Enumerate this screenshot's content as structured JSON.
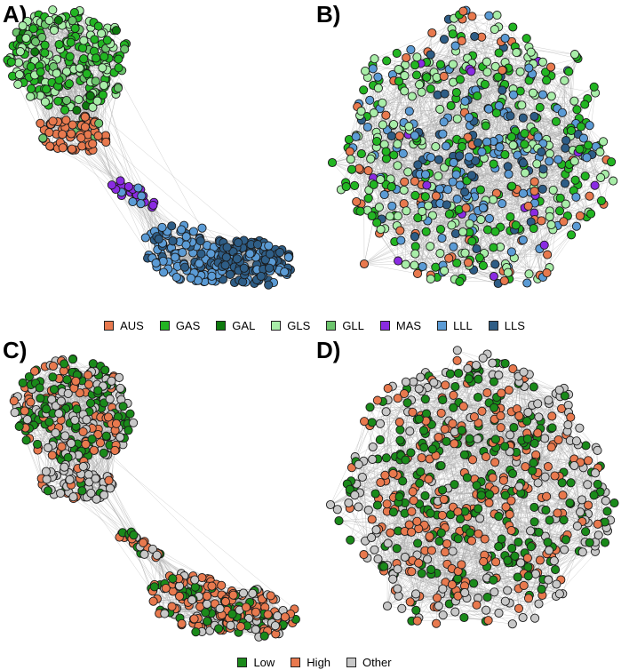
{
  "panels": {
    "a": {
      "label": "A)"
    },
    "b": {
      "label": "B)"
    },
    "c": {
      "label": "C)"
    },
    "d": {
      "label": "D)"
    }
  },
  "legend_top": {
    "items": [
      {
        "label": "AUS",
        "color": "#e8794e"
      },
      {
        "label": "GAS",
        "color": "#22b522"
      },
      {
        "label": "GAL",
        "color": "#0e7a0e"
      },
      {
        "label": "GLS",
        "color": "#a8eda8"
      },
      {
        "label": "GLL",
        "color": "#6cc46c"
      },
      {
        "label": "MAS",
        "color": "#8a2be2"
      },
      {
        "label": "LLL",
        "color": "#5b9bd5"
      },
      {
        "label": "LLS",
        "color": "#2e5d86"
      }
    ]
  },
  "legend_bottom": {
    "items": [
      {
        "label": "Low",
        "color": "#1a8a1a"
      },
      {
        "label": "High",
        "color": "#e8794e"
      },
      {
        "label": "Other",
        "color": "#c8c8c8"
      }
    ]
  },
  "colors": {
    "edge": "#a8a8a8",
    "node_outline": "#1a1a1a"
  }
}
